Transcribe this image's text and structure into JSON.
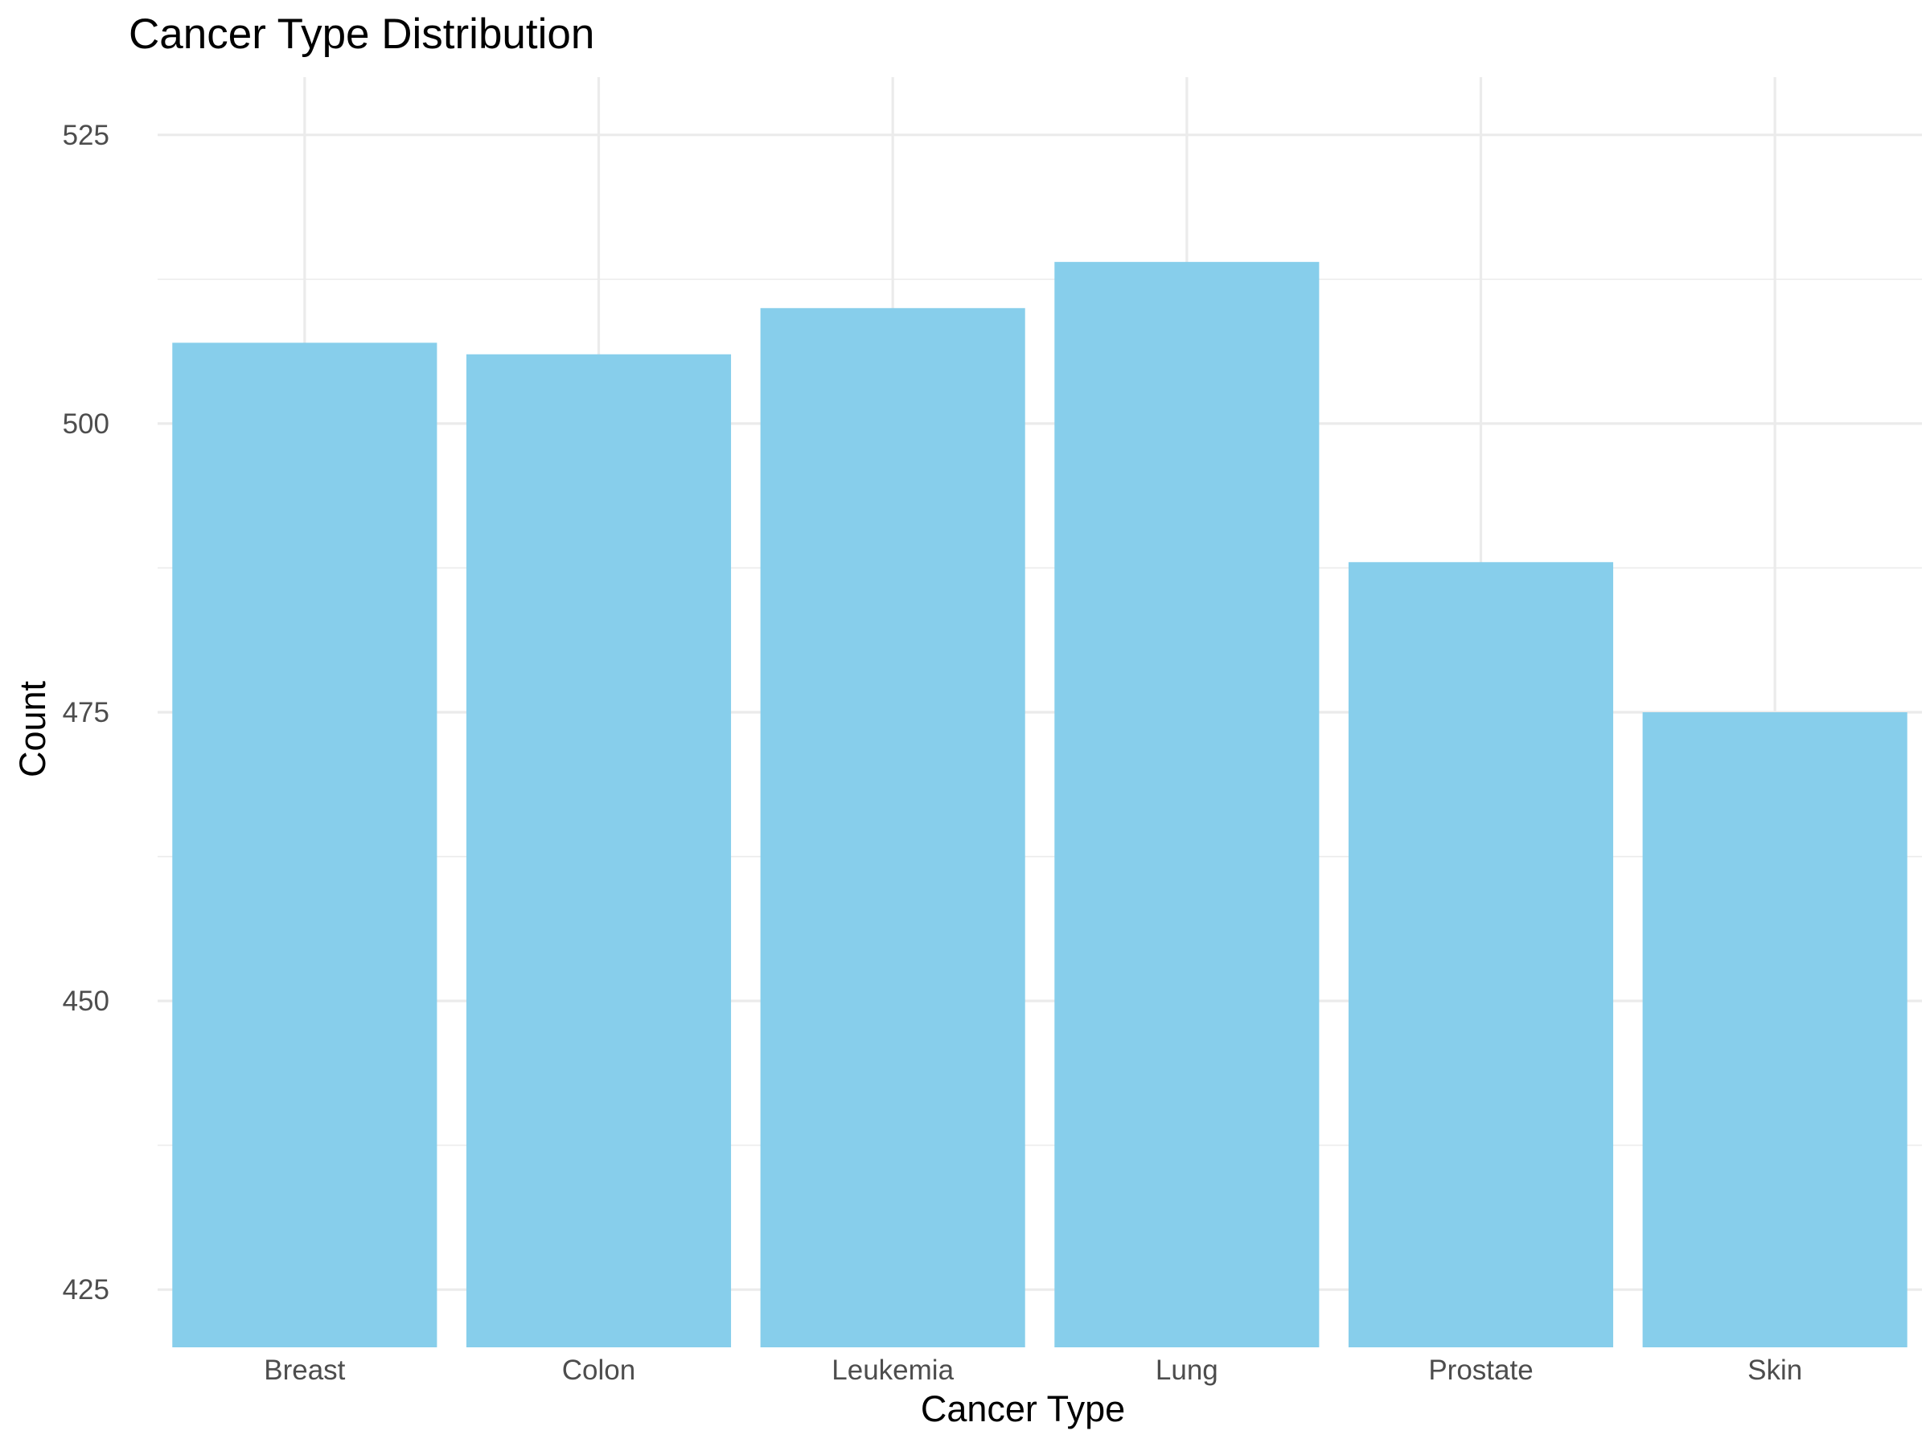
{
  "chart_data": {
    "type": "bar",
    "title": "Cancer Type Distribution",
    "xlabel": "Cancer Type",
    "ylabel": "Count",
    "categories": [
      "Breast",
      "Colon",
      "Leukemia",
      "Lung",
      "Prostate",
      "Skin"
    ],
    "values": [
      507,
      506,
      510,
      514,
      488,
      475
    ],
    "ylim": [
      420,
      530
    ],
    "yticks": [
      425,
      450,
      475,
      500,
      525
    ],
    "grid": true,
    "legend": "none",
    "colors": {
      "bar": "#87CEEB",
      "grid": "#ebebeb",
      "background": "#ffffff"
    }
  }
}
